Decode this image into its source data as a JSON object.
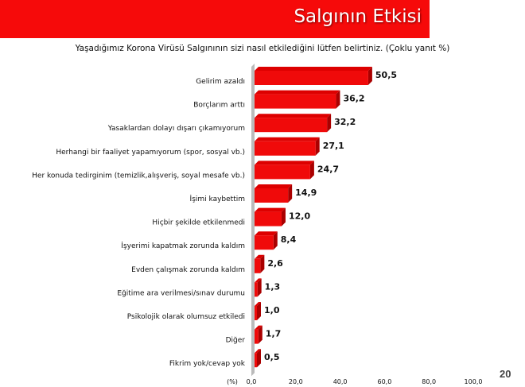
{
  "header": {
    "title": "Salgının Etkisi"
  },
  "page_number": "20",
  "chart_data": {
    "type": "bar",
    "orientation": "horizontal",
    "title": "Yaşadığımız Korona Virüsü Salgınının sizi nasıl etkilediğini lütfen belirtiniz. (Çoklu yanıt %)",
    "xlabel": "(%)",
    "categories": [
      "Gelirim azaldı",
      "Borçlarım arttı",
      "Yasaklardan dolayı dışarı çıkamıyorum",
      "Herhangi bir faaliyet yapamıyorum (spor, sosyal vb.)",
      "Her konuda tedirginim (temizlik,alışveriş, soyal mesafe vb.)",
      "İşimi kaybettim",
      "Hiçbir şekilde etkilenmedi",
      "İşyerimi kapatmak zorunda kaldım",
      "Evden çalışmak zorunda kaldım",
      "Eğitime ara verilmesi/sınav durumu",
      "Psikolojik olarak olumsuz etkiledi",
      "Diğer",
      "Fikrim yok/cevap yok"
    ],
    "values": [
      50.5,
      36.2,
      32.2,
      27.1,
      24.7,
      14.9,
      12.0,
      8.4,
      2.6,
      1.3,
      1.0,
      1.7,
      0.5
    ],
    "value_labels": [
      "50,5",
      "36,2",
      "32,2",
      "27,1",
      "24,7",
      "14,9",
      "12,0",
      "8,4",
      "2,6",
      "1,3",
      "1,0",
      "1,7",
      "0,5"
    ],
    "xticks": [
      "0,0",
      "20,0",
      "40,0",
      "60,0",
      "80,0",
      "100,0"
    ],
    "xlim": [
      0,
      100
    ],
    "bar_color": "#f00a0a",
    "grid": false
  }
}
